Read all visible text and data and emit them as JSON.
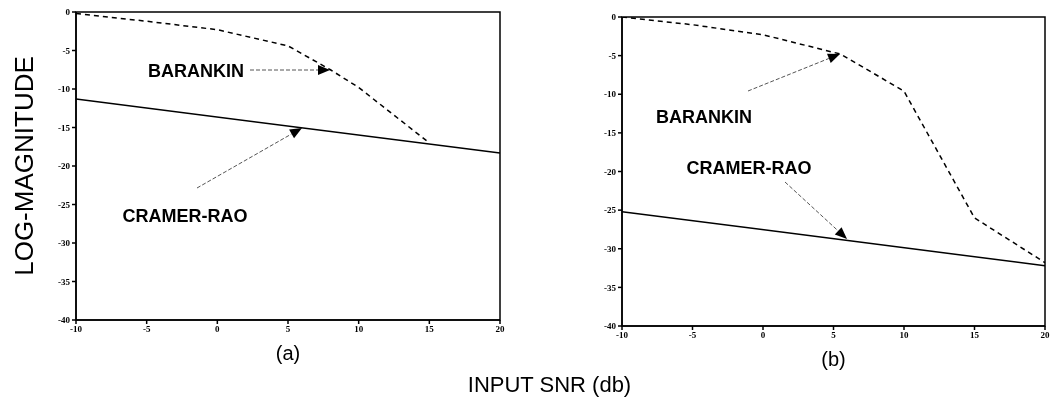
{
  "chart_data": [
    {
      "type": "line",
      "title": "(a)",
      "xlabel": "INPUT SNR (db)",
      "ylabel": "LOG-MAGNITUDE",
      "xlim": [
        -10,
        20
      ],
      "xticks": [
        -10,
        -5,
        0,
        5,
        10,
        15,
        20
      ],
      "ylim": [
        -40,
        0
      ],
      "yticks": [
        -40,
        -35,
        -30,
        -25,
        -20,
        -15,
        -10,
        -5,
        0
      ],
      "grid": false,
      "legend": false,
      "series": [
        {
          "color": "#000000",
          "line_style": "dashed",
          "x": [
            -10,
            -5,
            0,
            5,
            8,
            10,
            15
          ],
          "values": [
            -0.2,
            -1.2,
            -2.3,
            -4.4,
            -7.5,
            -9.8,
            -17
          ]
        },
        {
          "color": "#000000",
          "line_style": "solid",
          "x": [
            -10,
            20
          ],
          "values": [
            -11.3,
            -18.3
          ]
        }
      ],
      "annotations": [
        "BARANKIN",
        "CRAMER-RAO"
      ]
    },
    {
      "type": "line",
      "title": "(b)",
      "xlim": [
        -10,
        20
      ],
      "xticks": [
        -10,
        -5,
        0,
        5,
        10,
        15,
        20
      ],
      "ylim": [
        -40,
        0
      ],
      "yticks": [
        -40,
        -35,
        -30,
        -25,
        -20,
        -15,
        -10,
        -5,
        0
      ],
      "grid": false,
      "legend": false,
      "series": [
        {
          "color": "#000000",
          "line_style": "dashed",
          "x": [
            -10,
            -5,
            0,
            5.5,
            10,
            15,
            20
          ],
          "values": [
            0,
            -1,
            -2.3,
            -4.8,
            -9.6,
            -26,
            -31.8
          ]
        },
        {
          "color": "#000000",
          "line_style": "solid",
          "x": [
            -10,
            20
          ],
          "values": [
            -25.2,
            -32.2
          ]
        }
      ],
      "annotations": [
        "BARANKIN",
        "CRAMER-RAO"
      ]
    }
  ]
}
